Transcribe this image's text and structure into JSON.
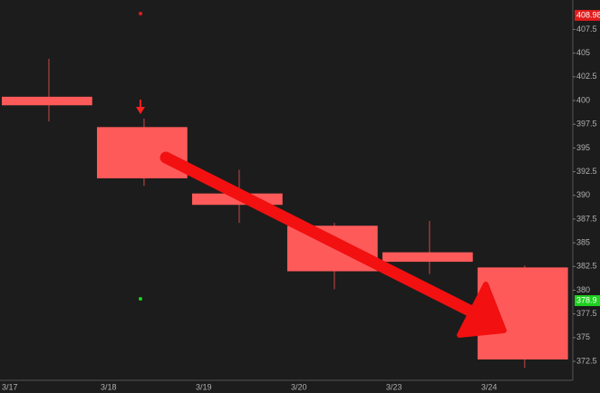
{
  "chart_data": {
    "type": "candlestick",
    "categories": [
      "3/17",
      "3/18",
      "3/19",
      "3/20",
      "3/23",
      "3/24"
    ],
    "open": [
      400.4,
      397.2,
      390.2,
      386.8,
      384.0,
      382.4
    ],
    "high": [
      404.4,
      398.1,
      392.7,
      387.1,
      387.3,
      382.6
    ],
    "low": [
      397.8,
      391.0,
      387.1,
      380.1,
      381.7,
      371.8
    ],
    "close": [
      399.5,
      391.8,
      389.0,
      382.0,
      383.0,
      372.7
    ],
    "color": "#ff5a5a",
    "wick_color": "#c84a4a",
    "ylim": [
      370.5,
      410.6
    ],
    "yticks": [
      372.5,
      375,
      377.5,
      380,
      382.5,
      385,
      387.5,
      390,
      392.5,
      395,
      397.5,
      400,
      402.5,
      405,
      407.5
    ],
    "price_markers": [
      {
        "value": 408.98,
        "color": "#e01b1b"
      },
      {
        "value": 378.9,
        "color": "#1fd01f"
      }
    ]
  }
}
